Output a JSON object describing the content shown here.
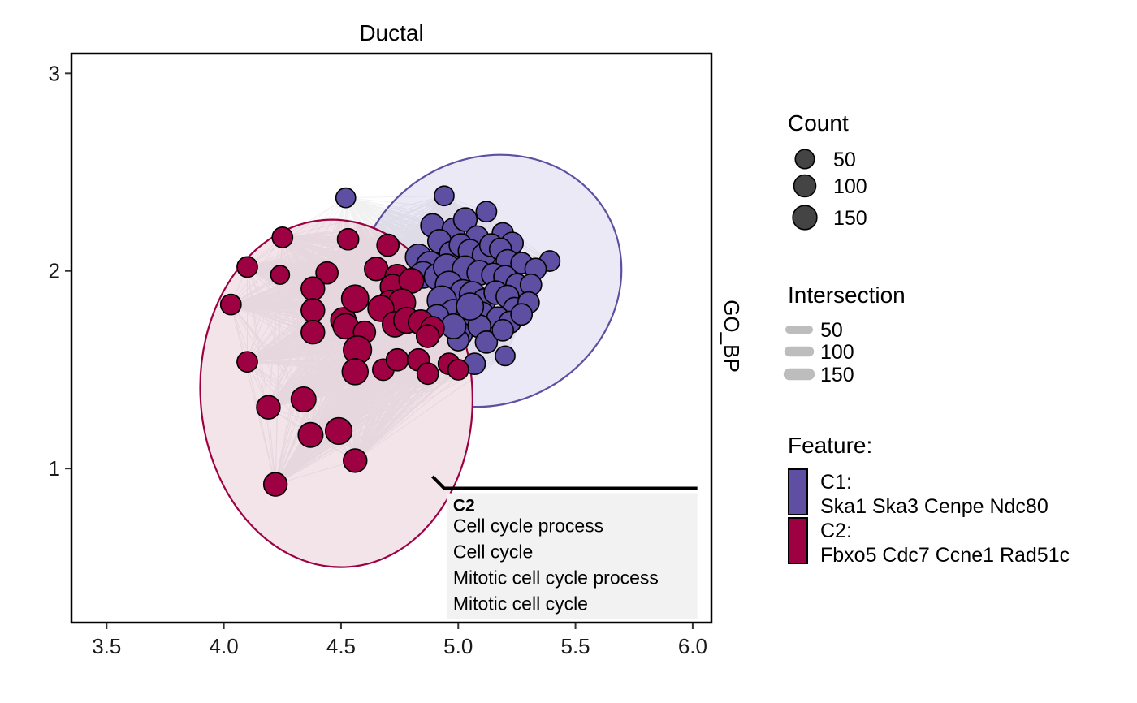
{
  "chart_data": {
    "type": "scatter",
    "title": "Ductal",
    "facet_label": "GO_BP",
    "xlim": [
      3.35,
      6.08
    ],
    "ylim": [
      0.22,
      3.1
    ],
    "x_ticks": [
      "3.5",
      "4.0",
      "4.5",
      "5.0",
      "5.5",
      "6.0"
    ],
    "y_ticks": [
      "1",
      "2",
      "3"
    ],
    "grid": false,
    "legend_position": "right",
    "legends": {
      "count": {
        "title": "Count",
        "entries": [
          "50",
          "100",
          "150"
        ],
        "values": [
          50,
          100,
          150
        ]
      },
      "intersection": {
        "title": "Intersection",
        "entries": [
          "50",
          "100",
          "150"
        ],
        "values": [
          50,
          100,
          150
        ]
      },
      "feature": {
        "title": "Feature:",
        "entries": [
          {
            "name": "C1:",
            "genes": "Ska1 Ska3 Cenpe Ndc80",
            "color": "#5e4fa2"
          },
          {
            "name": "C2:",
            "genes": "Fbxo5 Cdc7 Ccne1 Rad51c",
            "color": "#9e0142"
          }
        ]
      }
    },
    "clusters": [
      {
        "name": "C1",
        "color": "#5e4fa2",
        "fill": "#ebe9f5",
        "ellipse": {
          "cx": 5.13,
          "cy": 1.95,
          "rx": 0.58,
          "ry": 0.62,
          "rotation": -30
        }
      },
      {
        "name": "C2",
        "color": "#9e0142",
        "fill": "#f3e4ea",
        "ellipse": {
          "cx": 4.48,
          "cy": 1.38,
          "rx": 0.58,
          "ry": 0.88,
          "rotation": -4
        }
      }
    ],
    "series": [
      {
        "name": "C1",
        "color": "#5e4fa2",
        "points": [
          [
            4.52,
            2.37,
            35
          ],
          [
            4.94,
            2.38,
            35
          ],
          [
            5.12,
            2.3,
            40
          ],
          [
            5.39,
            2.05,
            40
          ],
          [
            4.89,
            2.23,
            60
          ],
          [
            4.98,
            2.21,
            55
          ],
          [
            5.03,
            2.26,
            60
          ],
          [
            5.08,
            2.17,
            55
          ],
          [
            5.19,
            2.19,
            45
          ],
          [
            5.23,
            2.14,
            50
          ],
          [
            4.92,
            2.15,
            60
          ],
          [
            4.97,
            2.09,
            60
          ],
          [
            5.01,
            2.13,
            55
          ],
          [
            5.05,
            2.1,
            60
          ],
          [
            5.11,
            2.08,
            60
          ],
          [
            5.14,
            2.13,
            55
          ],
          [
            5.18,
            2.11,
            50
          ],
          [
            5.21,
            2.05,
            55
          ],
          [
            5.27,
            2.04,
            45
          ],
          [
            5.33,
            2.01,
            45
          ],
          [
            4.83,
            2.07,
            80
          ],
          [
            4.88,
            2.03,
            90
          ],
          [
            4.85,
            1.98,
            85
          ],
          [
            4.91,
            1.97,
            80
          ],
          [
            4.95,
            2.02,
            80
          ],
          [
            5.03,
            2.01,
            80
          ],
          [
            5.09,
            1.99,
            70
          ],
          [
            5.15,
            1.98,
            60
          ],
          [
            5.2,
            1.97,
            55
          ],
          [
            5.25,
            1.93,
            50
          ],
          [
            5.31,
            1.93,
            45
          ],
          [
            4.96,
            1.93,
            90
          ],
          [
            5.02,
            1.89,
            80
          ],
          [
            5.06,
            1.88,
            80
          ],
          [
            5.11,
            1.85,
            60
          ],
          [
            5.16,
            1.89,
            60
          ],
          [
            5.21,
            1.87,
            55
          ],
          [
            5.24,
            1.81,
            50
          ],
          [
            5.3,
            1.84,
            45
          ],
          [
            4.93,
            1.85,
            110
          ],
          [
            4.98,
            1.79,
            80
          ],
          [
            5.04,
            1.76,
            80
          ],
          [
            5.1,
            1.78,
            70
          ],
          [
            5.17,
            1.76,
            55
          ],
          [
            5.22,
            1.74,
            50
          ],
          [
            5.27,
            1.78,
            45
          ],
          [
            4.91,
            1.77,
            60
          ],
          [
            5.01,
            1.68,
            60
          ],
          [
            5.09,
            1.72,
            55
          ],
          [
            5.12,
            1.64,
            50
          ],
          [
            5.19,
            1.7,
            45
          ],
          [
            5.0,
            1.65,
            45
          ],
          [
            5.07,
            1.53,
            45
          ],
          [
            5.2,
            1.57,
            35
          ],
          [
            4.98,
            1.72,
            70
          ],
          [
            5.05,
            1.82,
            90
          ]
        ]
      },
      {
        "name": "C2",
        "color": "#9e0142",
        "points": [
          [
            4.25,
            2.17,
            40
          ],
          [
            4.1,
            2.02,
            40
          ],
          [
            4.24,
            1.98,
            30
          ],
          [
            4.03,
            1.83,
            40
          ],
          [
            4.1,
            1.54,
            40
          ],
          [
            4.44,
            1.99,
            50
          ],
          [
            4.38,
            1.91,
            60
          ],
          [
            4.38,
            1.8,
            60
          ],
          [
            4.38,
            1.69,
            60
          ],
          [
            4.51,
            1.75,
            75
          ],
          [
            4.52,
            1.72,
            75
          ],
          [
            4.56,
            1.86,
            90
          ],
          [
            4.53,
            2.16,
            45
          ],
          [
            4.7,
            2.13,
            50
          ],
          [
            4.65,
            2.01,
            60
          ],
          [
            4.74,
            1.97,
            70
          ],
          [
            4.72,
            1.92,
            70
          ],
          [
            4.8,
            1.95,
            70
          ],
          [
            4.71,
            1.83,
            100
          ],
          [
            4.76,
            1.84,
            90
          ],
          [
            4.67,
            1.81,
            80
          ],
          [
            4.73,
            1.73,
            75
          ],
          [
            4.78,
            1.75,
            80
          ],
          [
            4.84,
            1.74,
            70
          ],
          [
            4.89,
            1.71,
            60
          ],
          [
            4.87,
            1.67,
            55
          ],
          [
            4.6,
            1.69,
            50
          ],
          [
            4.57,
            1.6,
            100
          ],
          [
            4.56,
            1.49,
            80
          ],
          [
            4.68,
            1.5,
            45
          ],
          [
            4.74,
            1.55,
            50
          ],
          [
            4.83,
            1.55,
            50
          ],
          [
            4.87,
            1.48,
            45
          ],
          [
            4.96,
            1.53,
            45
          ],
          [
            5.0,
            1.5,
            40
          ],
          [
            4.19,
            1.31,
            60
          ],
          [
            4.34,
            1.35,
            70
          ],
          [
            4.37,
            1.17,
            70
          ],
          [
            4.49,
            1.19,
            85
          ],
          [
            4.56,
            1.04,
            60
          ],
          [
            4.22,
            0.92,
            60
          ]
        ]
      }
    ],
    "annotation": {
      "header": "C2",
      "lines": [
        "Cell cycle process",
        "Cell cycle",
        "Mitotic cell cycle process",
        "Mitotic cell cycle"
      ],
      "anchor": [
        4.89,
        0.96
      ],
      "elbow": [
        4.94,
        0.9
      ],
      "line_end": [
        6.02,
        0.9
      ],
      "box": [
        4.95,
        0.24,
        6.02,
        0.9
      ]
    }
  }
}
